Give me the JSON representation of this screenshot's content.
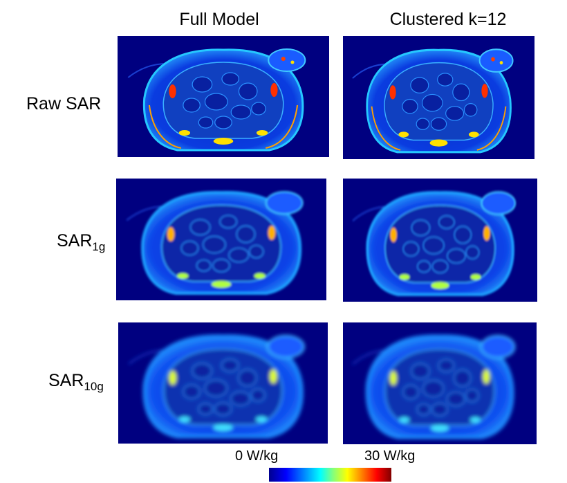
{
  "columns": [
    "Full Model",
    "Clustered k=12"
  ],
  "rows": [
    {
      "label": "Raw SAR",
      "sub": "",
      "variant": "raw"
    },
    {
      "label": "SAR",
      "sub": "1g",
      "variant": "1g"
    },
    {
      "label": "SAR",
      "sub": "10g",
      "variant": "10g"
    }
  ],
  "colorbar": {
    "min_label": "0 W/kg",
    "max_label": "30 W/kg",
    "colors": [
      "#00008f",
      "#0000ff",
      "#0080ff",
      "#00ffff",
      "#80ff80",
      "#ffff00",
      "#ff8000",
      "#ff0000",
      "#800000"
    ]
  }
}
